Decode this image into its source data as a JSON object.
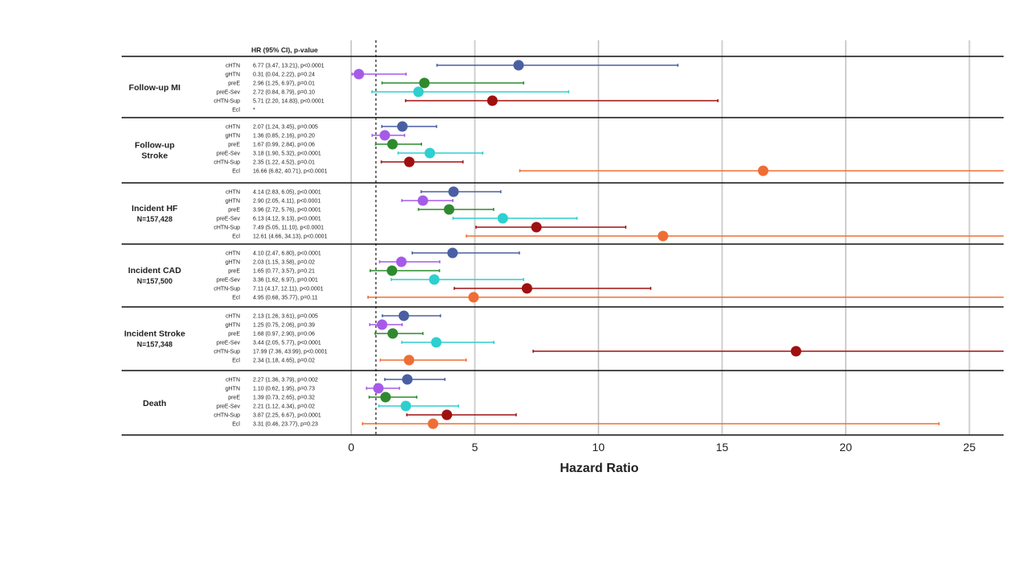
{
  "chart_data": {
    "type": "forest",
    "column_header": "HR (95% CI), p-value",
    "xlabel": "Hazard Ratio",
    "xlim": [
      -0.7,
      26.4
    ],
    "xticks": [
      0,
      5,
      10,
      15,
      20,
      25
    ],
    "reference_line": 1,
    "series_colors": {
      "cHTN": "#4a5fa3",
      "gHTN": "#a65be8",
      "preE": "#2f8a2f",
      "preE-Sev": "#2ecfcf",
      "cHTN-Sup": "#a01010",
      "Ecl": "#ef6e35"
    },
    "groups": [
      {
        "title": "Follow-up MI",
        "subtitle": "",
        "rows": [
          {
            "label": "cHTN",
            "text": "6.77 (3.47, 13.21), p<0.0001",
            "hr": 6.77,
            "lo": 3.47,
            "hi": 13.21
          },
          {
            "label": "gHTN",
            "text": "0.31 (0.04, 2.22), p=0.24",
            "hr": 0.31,
            "lo": 0.04,
            "hi": 2.22
          },
          {
            "label": "preE",
            "text": "2.96 (1.25, 6.97), p=0.01",
            "hr": 2.96,
            "lo": 1.25,
            "hi": 6.97
          },
          {
            "label": "preE-Sev",
            "text": "2.72 (0.84, 8.79), p=0.10",
            "hr": 2.72,
            "lo": 0.84,
            "hi": 8.79
          },
          {
            "label": "cHTN-Sup",
            "text": "5.71 (2.20, 14.83), p<0.0001",
            "hr": 5.71,
            "lo": 2.2,
            "hi": 14.83
          },
          {
            "label": "Ecl",
            "text": "*",
            "hr": null,
            "lo": null,
            "hi": null
          }
        ]
      },
      {
        "title": "Follow-up",
        "subtitle": "Stroke",
        "rows": [
          {
            "label": "cHTN",
            "text": "2.07 (1.24, 3.45), p=0.005",
            "hr": 2.07,
            "lo": 1.24,
            "hi": 3.45
          },
          {
            "label": "gHTN",
            "text": "1.36 (0.85, 2.16), p=0.20",
            "hr": 1.36,
            "lo": 0.85,
            "hi": 2.16
          },
          {
            "label": "preE",
            "text": "1.67 (0.99, 2.84), p=0.06",
            "hr": 1.67,
            "lo": 0.99,
            "hi": 2.84
          },
          {
            "label": "preE-Sev",
            "text": "3.18 (1.90, 5.32), p<0.0001",
            "hr": 3.18,
            "lo": 1.9,
            "hi": 5.32
          },
          {
            "label": "cHTN-Sup",
            "text": "2.35 (1.22, 4.52), p=0.01",
            "hr": 2.35,
            "lo": 1.22,
            "hi": 4.52
          },
          {
            "label": "Ecl",
            "text": "16.66 (6.82, 40.71), p<0.0001",
            "hr": 16.66,
            "lo": 6.82,
            "hi": 40.71
          }
        ]
      },
      {
        "title": "Incident HF",
        "subtitle": "N=157,428",
        "rows": [
          {
            "label": "cHTN",
            "text": "4.14 (2.83, 6.05), p<0.0001",
            "hr": 4.14,
            "lo": 2.83,
            "hi": 6.05
          },
          {
            "label": "gHTN",
            "text": "2.90 (2.05, 4.11), p<0.0001",
            "hr": 2.9,
            "lo": 2.05,
            "hi": 4.11
          },
          {
            "label": "preE",
            "text": "3.96 (2.72, 5.76), p<0.0001",
            "hr": 3.96,
            "lo": 2.72,
            "hi": 5.76
          },
          {
            "label": "preE-Sev",
            "text": "6.13 (4.12, 9.13), p<0.0001",
            "hr": 6.13,
            "lo": 4.12,
            "hi": 9.13
          },
          {
            "label": "cHTN-Sup",
            "text": "7.49 (5.05, 11.10), p<0.0001",
            "hr": 7.49,
            "lo": 5.05,
            "hi": 11.1
          },
          {
            "label": "Ecl",
            "text": "12.61 (4.66, 34.13), p<0.0001",
            "hr": 12.61,
            "lo": 4.66,
            "hi": 34.13
          }
        ]
      },
      {
        "title": "Incident CAD",
        "subtitle": "N=157,500",
        "rows": [
          {
            "label": "cHTN",
            "text": "4.10 (2.47, 6.80), p<0.0001",
            "hr": 4.1,
            "lo": 2.47,
            "hi": 6.8
          },
          {
            "label": "gHTN",
            "text": "2.03 (1.15, 3.58), p=0.02",
            "hr": 2.03,
            "lo": 1.15,
            "hi": 3.58
          },
          {
            "label": "preE",
            "text": "1.65 (0.77, 3.57), p=0.21",
            "hr": 1.65,
            "lo": 0.77,
            "hi": 3.57
          },
          {
            "label": "preE-Sev",
            "text": "3.36 (1.62, 6.97), p=0.001",
            "hr": 3.36,
            "lo": 1.62,
            "hi": 6.97
          },
          {
            "label": "cHTN-Sup",
            "text": "7.11 (4.17, 12.11), p<0.0001",
            "hr": 7.11,
            "lo": 4.17,
            "hi": 12.11
          },
          {
            "label": "Ecl",
            "text": "4.95 (0.68, 35.77), p=0.11",
            "hr": 4.95,
            "lo": 0.68,
            "hi": 35.77
          }
        ]
      },
      {
        "title": "Incident Stroke",
        "subtitle": "N=157,348",
        "rows": [
          {
            "label": "cHTN",
            "text": "2.13 (1.26, 3.61), p=0.005",
            "hr": 2.13,
            "lo": 1.26,
            "hi": 3.61
          },
          {
            "label": "gHTN",
            "text": "1.25 (0.75, 2.06), p=0.39",
            "hr": 1.25,
            "lo": 0.75,
            "hi": 2.06
          },
          {
            "label": "preE",
            "text": "1.68 (0.97, 2.90), p=0.06",
            "hr": 1.68,
            "lo": 0.97,
            "hi": 2.9
          },
          {
            "label": "preE-Sev",
            "text": "3.44 (2.05, 5.77), p<0.0001",
            "hr": 3.44,
            "lo": 2.05,
            "hi": 5.77
          },
          {
            "label": "cHTN-Sup",
            "text": "17.99 (7.36, 43.99), p<0.0001",
            "hr": 17.99,
            "lo": 7.36,
            "hi": 43.99
          },
          {
            "label": "Ecl",
            "text": "2.34 (1.18, 4.65), p=0.02",
            "hr": 2.34,
            "lo": 1.18,
            "hi": 4.65
          }
        ]
      },
      {
        "title": "Death",
        "subtitle": "",
        "rows": [
          {
            "label": "cHTN",
            "text": "2.27 (1.36, 3.79), p=0.002",
            "hr": 2.27,
            "lo": 1.36,
            "hi": 3.79
          },
          {
            "label": "gHTN",
            "text": "1.10 (0.62, 1.95), p=0.73",
            "hr": 1.1,
            "lo": 0.62,
            "hi": 1.95
          },
          {
            "label": "preE",
            "text": "1.39 (0.73, 2.65), p=0.32",
            "hr": 1.39,
            "lo": 0.73,
            "hi": 2.65
          },
          {
            "label": "preE-Sev",
            "text": "2.21 (1.12, 4.34), p=0.02",
            "hr": 2.21,
            "lo": 1.12,
            "hi": 4.34
          },
          {
            "label": "cHTN-Sup",
            "text": "3.87 (2.25, 6.67), p<0.0001",
            "hr": 3.87,
            "lo": 2.25,
            "hi": 6.67
          },
          {
            "label": "Ecl",
            "text": "3.31 (0.46, 23.77), p=0.23",
            "hr": 3.31,
            "lo": 0.46,
            "hi": 23.77
          }
        ]
      }
    ]
  }
}
